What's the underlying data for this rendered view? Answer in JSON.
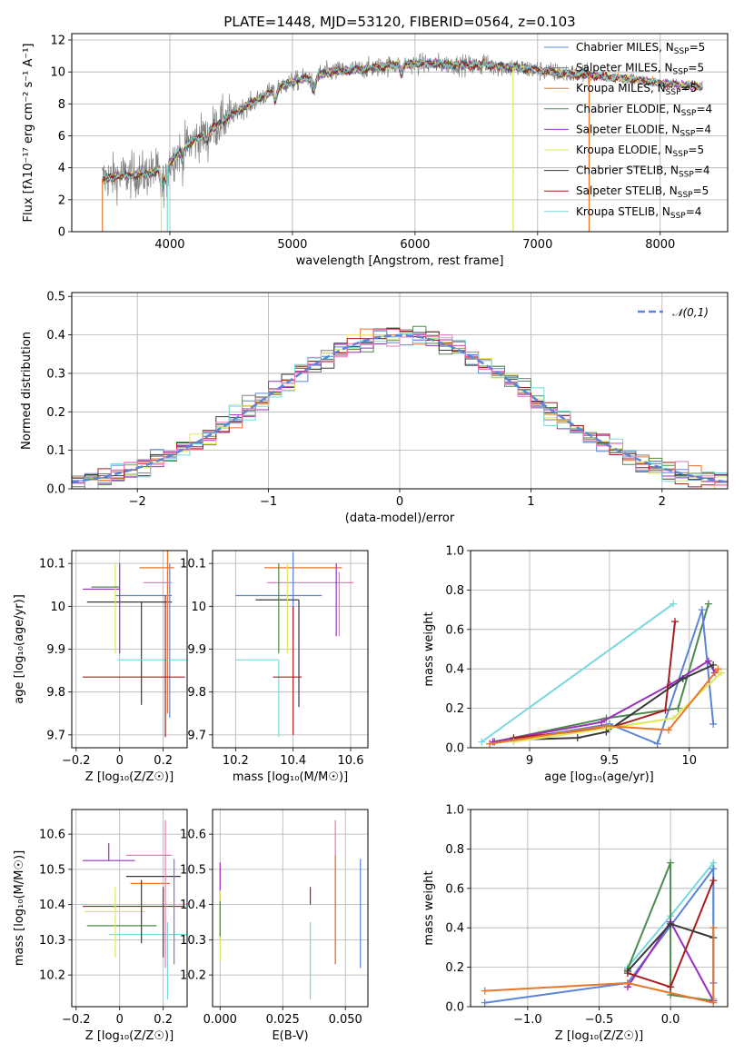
{
  "figure": {
    "title": "PLATE=1448, MJD=53120, FIBERID=0564, z=0.103"
  },
  "colors": {
    "Chabrier MILES": "#5b85d8",
    "Salpeter MILES": "#7f7f7f",
    "Kroupa MILES": "#e9762a",
    "Chabrier ELODIE": "#4e8a4e",
    "Salpeter ELODIE": "#9b2fbf",
    "Kroupa ELODIE": "#dfe85a",
    "Chabrier STELIB": "#3a3a3a",
    "Salpeter STELIB": "#a71d1d",
    "Kroupa STELIB": "#79d8dd",
    "Pink": "#ee77b8"
  },
  "chart_data": [
    {
      "id": "spectrum",
      "type": "line",
      "title": "PLATE=1448, MJD=53120, FIBERID=0564, z=0.103",
      "xlabel": "wavelength [Angstrom, rest frame]",
      "ylabel": "Flux [fλ10⁻¹⁷ erg cm⁻² s⁻¹ A⁻¹]",
      "xlim": [
        3200,
        8550
      ],
      "ylim": [
        0,
        12.4
      ],
      "xticks": [
        4000,
        5000,
        6000,
        7000,
        8000
      ],
      "yticks": [
        0,
        2,
        4,
        6,
        8,
        10,
        12
      ],
      "legend_position": "right",
      "legend": [
        {
          "label": "Chabrier MILES, N",
          "sub": "SSP",
          "suffix": "=5",
          "color": "#5b85d8"
        },
        {
          "label": "Salpeter MILES, N",
          "sub": "SSP",
          "suffix": "=5",
          "color": "#7f7f7f"
        },
        {
          "label": "Kroupa MILES, N",
          "sub": "SSP",
          "suffix": "=5",
          "color": "#e9762a"
        },
        {
          "label": "Chabrier ELODIE, N",
          "sub": "SSP",
          "suffix": "=4",
          "color": "#4e8a4e"
        },
        {
          "label": "Salpeter ELODIE, N",
          "sub": "SSP",
          "suffix": "=4",
          "color": "#9b2fbf"
        },
        {
          "label": "Kroupa ELODIE, N",
          "sub": "SSP",
          "suffix": "=5",
          "color": "#dfe85a"
        },
        {
          "label": "Chabrier STELIB, N",
          "sub": "SSP",
          "suffix": "=4",
          "color": "#3a3a3a"
        },
        {
          "label": "Salpeter STELIB, N",
          "sub": "SSP",
          "suffix": "=5",
          "color": "#a71d1d"
        },
        {
          "label": "Kroupa STELIB, N",
          "sub": "SSP",
          "suffix": "=4",
          "color": "#79d8dd"
        }
      ],
      "continuum": [
        [
          3450,
          3.3
        ],
        [
          3600,
          3.5
        ],
        [
          3800,
          3.6
        ],
        [
          3950,
          3.9
        ],
        [
          4100,
          5.2
        ],
        [
          4300,
          6.2
        ],
        [
          4500,
          7.3
        ],
        [
          4700,
          8.2
        ],
        [
          4900,
          9.1
        ],
        [
          5100,
          9.6
        ],
        [
          5300,
          10.0
        ],
        [
          5600,
          10.2
        ],
        [
          5900,
          10.5
        ],
        [
          6200,
          10.5
        ],
        [
          6500,
          10.4
        ],
        [
          6800,
          10.3
        ],
        [
          7100,
          10.0
        ],
        [
          7400,
          9.8
        ],
        [
          7700,
          9.6
        ],
        [
          8000,
          9.3
        ],
        [
          8300,
          9.1
        ]
      ],
      "data_range": [
        3450,
        7420
      ],
      "model_range": [
        3450,
        8350
      ],
      "drops": [
        {
          "x": 3450,
          "color": "#e9762a"
        },
        {
          "x": 3980,
          "color": "#79d8dd"
        },
        {
          "x": 3930,
          "color": "#dfe85a"
        },
        {
          "x": 6800,
          "color": "#dfe85a"
        },
        {
          "x": 7420,
          "color": "#e9762a"
        }
      ]
    },
    {
      "id": "histogram",
      "type": "bar",
      "xlabel": "(data-model)/error",
      "ylabel": "Normed distribution",
      "xlim": [
        -2.5,
        2.5
      ],
      "ylim": [
        0,
        0.51
      ],
      "xticks": [
        -2,
        -1,
        0,
        1,
        2
      ],
      "yticks": [
        0.0,
        0.1,
        0.2,
        0.3,
        0.4,
        0.5
      ],
      "bin_width": 0.1,
      "legend_position": "top-right",
      "legend": [
        {
          "label": "𝒩(0,1)",
          "color": "#5b85d8",
          "style": "dashed"
        }
      ]
    },
    {
      "id": "age-vs-Z",
      "type": "scatter",
      "xlabel": "Z [log₁₀(Z/Z☉)]",
      "ylabel": "age  [log₁₀(age/yr)]",
      "xlim": [
        -0.22,
        0.31
      ],
      "ylim": [
        9.67,
        10.13
      ],
      "xticks": [
        -0.2,
        0.0,
        0.2
      ],
      "yticks": [
        9.7,
        9.8,
        9.9,
        10.0,
        10.1
      ],
      "points": [
        {
          "x": 0.1,
          "y": 10.0,
          "xerr": [
            0.24,
            0.09
          ],
          "yerr": [
            0.23,
            0.0
          ],
          "color": "#3a3a3a"
        },
        {
          "x": 0.1,
          "y": 10.02,
          "xerr": [
            0.28,
            0.12
          ],
          "yerr": [
            0.0,
            0.0
          ],
          "color": "#5b85d8"
        },
        {
          "x": 0.01,
          "y": 10.04,
          "xerr": [
            0.27,
            0.0
          ],
          "yerr": [
            0.15,
            0.06
          ],
          "color": "#9b2fbf"
        },
        {
          "x": 0.15,
          "y": 10.09,
          "xerr": [
            0.1,
            0.09
          ],
          "yerr": [
            0.0,
            0.0
          ],
          "color": "#e9762a"
        },
        {
          "x": 0.19,
          "y": 10.06,
          "xerr": [
            0.14,
            0.11
          ],
          "yerr": [
            0.0,
            0.0
          ],
          "color": "#ee77b8"
        },
        {
          "x": 0.07,
          "y": 9.87,
          "xerr": [
            0.1,
            0.22
          ],
          "yerr": [
            0.0,
            0.0
          ],
          "color": "#79d8dd"
        },
        {
          "x": 0.0,
          "y": 9.84,
          "xerr": [
            0.17,
            0.2
          ],
          "yerr": [
            0.0,
            0.0
          ],
          "color": "#a71d1d"
        },
        {
          "x": -0.01,
          "y": 10.02,
          "xerr": [
            0.0,
            0.0
          ],
          "yerr": [
            0.13,
            0.08
          ],
          "color": "#dfe85a"
        }
      ]
    },
    {
      "id": "age-vs-mass",
      "type": "scatter",
      "xlabel": "mass [log₁₀(M/M☉)]",
      "xlim": [
        10.12,
        10.66
      ],
      "ylim": [
        9.67,
        10.13
      ],
      "xticks": [
        10.2,
        10.4,
        10.6
      ],
      "yticks": [
        9.7,
        9.8,
        9.9,
        10.0,
        10.1
      ]
    },
    {
      "id": "massweight-vs-age",
      "type": "line",
      "xlabel": "age  [log₁₀(age/yr)]",
      "ylabel": "mass weight",
      "xlim": [
        8.63,
        10.24
      ],
      "ylim": [
        0,
        1.0
      ],
      "xticks": [
        9.0,
        9.5,
        10.0
      ],
      "yticks": [
        0.0,
        0.2,
        0.4,
        0.6,
        0.8,
        1.0
      ],
      "series": [
        {
          "color": "#79d8dd",
          "x": [
            8.7,
            9.9
          ],
          "y": [
            0.03,
            0.73
          ]
        },
        {
          "color": "#4e8a4e",
          "x": [
            8.78,
            9.48,
            9.93,
            10.12
          ],
          "y": [
            0.03,
            0.15,
            0.2,
            0.73
          ]
        },
        {
          "color": "#5b85d8",
          "x": [
            8.75,
            9.5,
            9.8,
            10.08,
            10.15
          ],
          "y": [
            0.02,
            0.12,
            0.02,
            0.7,
            0.12
          ]
        },
        {
          "color": "#9b2fbf",
          "x": [
            8.77,
            9.45,
            9.88,
            10.12,
            10.16
          ],
          "y": [
            0.03,
            0.13,
            0.32,
            0.44,
            0.38
          ]
        },
        {
          "color": "#a71d1d",
          "x": [
            8.9,
            9.5,
            9.85,
            9.91
          ],
          "y": [
            0.05,
            0.1,
            0.19,
            0.64
          ]
        },
        {
          "color": "#3a3a3a",
          "x": [
            8.9,
            9.3,
            9.48,
            9.96,
            10.15
          ],
          "y": [
            0.04,
            0.05,
            0.08,
            0.35,
            0.42
          ]
        },
        {
          "color": "#dfe85a",
          "x": [
            8.9,
            9.5,
            9.9,
            10.2
          ],
          "y": [
            0.03,
            0.1,
            0.15,
            0.38
          ]
        },
        {
          "color": "#e9762a",
          "x": [
            8.75,
            9.48,
            9.87,
            10.18
          ],
          "y": [
            0.02,
            0.11,
            0.09,
            0.4
          ]
        }
      ]
    },
    {
      "id": "mass-vs-Z",
      "type": "scatter",
      "xlabel": "Z [log₁₀(Z/Z☉)]",
      "ylabel": "mass [log₁₀(M/M☉)]",
      "xlim": [
        -0.22,
        0.31
      ],
      "ylim": [
        10.11,
        10.67
      ],
      "xticks": [
        -0.2,
        0.0,
        0.2
      ],
      "yticks": [
        10.2,
        10.3,
        10.4,
        10.5,
        10.6
      ]
    },
    {
      "id": "mass-vs-EBV",
      "type": "scatter",
      "xlabel": "E(B-V)",
      "xlim": [
        -0.003,
        0.059
      ],
      "ylim": [
        10.11,
        10.67
      ],
      "xticks": [
        0.0,
        0.025,
        0.05
      ],
      "xticklabels": [
        "0.000",
        "0.025",
        "0.050"
      ],
      "yticks": [
        10.2,
        10.3,
        10.4,
        10.5,
        10.6
      ]
    },
    {
      "id": "massweight-vs-Z",
      "type": "line",
      "xlabel": "Z [log₁₀(Z/Z☉)]",
      "ylabel": "mass weight",
      "xlim": [
        -1.4,
        0.4
      ],
      "ylim": [
        0,
        1.0
      ],
      "xticks": [
        -1.0,
        -0.5,
        0.0
      ],
      "xticklabels": [
        "−1.0",
        "−0.5",
        "0.0"
      ],
      "yticks": [
        0.0,
        0.2,
        0.4,
        0.6,
        0.8,
        1.0
      ],
      "series": [
        {
          "color": "#79d8dd",
          "x": [
            -0.3,
            0.0,
            0.3,
            0.3
          ],
          "y": [
            0.2,
            0.46,
            0.73,
            0.04
          ]
        },
        {
          "color": "#4e8a4e",
          "x": [
            -0.3,
            0.0,
            0.0,
            0.3
          ],
          "y": [
            0.19,
            0.73,
            0.06,
            0.03
          ]
        },
        {
          "color": "#5b85d8",
          "x": [
            -1.3,
            -0.3,
            0.3,
            0.3
          ],
          "y": [
            0.02,
            0.12,
            0.7,
            0.12
          ]
        },
        {
          "color": "#9b2fbf",
          "x": [
            -0.3,
            0.0,
            0.3
          ],
          "y": [
            0.1,
            0.43,
            0.03
          ]
        },
        {
          "color": "#a71d1d",
          "x": [
            -0.3,
            0.0,
            0.3
          ],
          "y": [
            0.17,
            0.1,
            0.64
          ]
        },
        {
          "color": "#3a3a3a",
          "x": [
            -0.3,
            0.0,
            0.3
          ],
          "y": [
            0.18,
            0.42,
            0.35
          ]
        },
        {
          "color": "#e9762a",
          "x": [
            -1.3,
            -0.3,
            0.3,
            0.3
          ],
          "y": [
            0.08,
            0.12,
            0.02,
            0.4
          ]
        }
      ]
    }
  ]
}
